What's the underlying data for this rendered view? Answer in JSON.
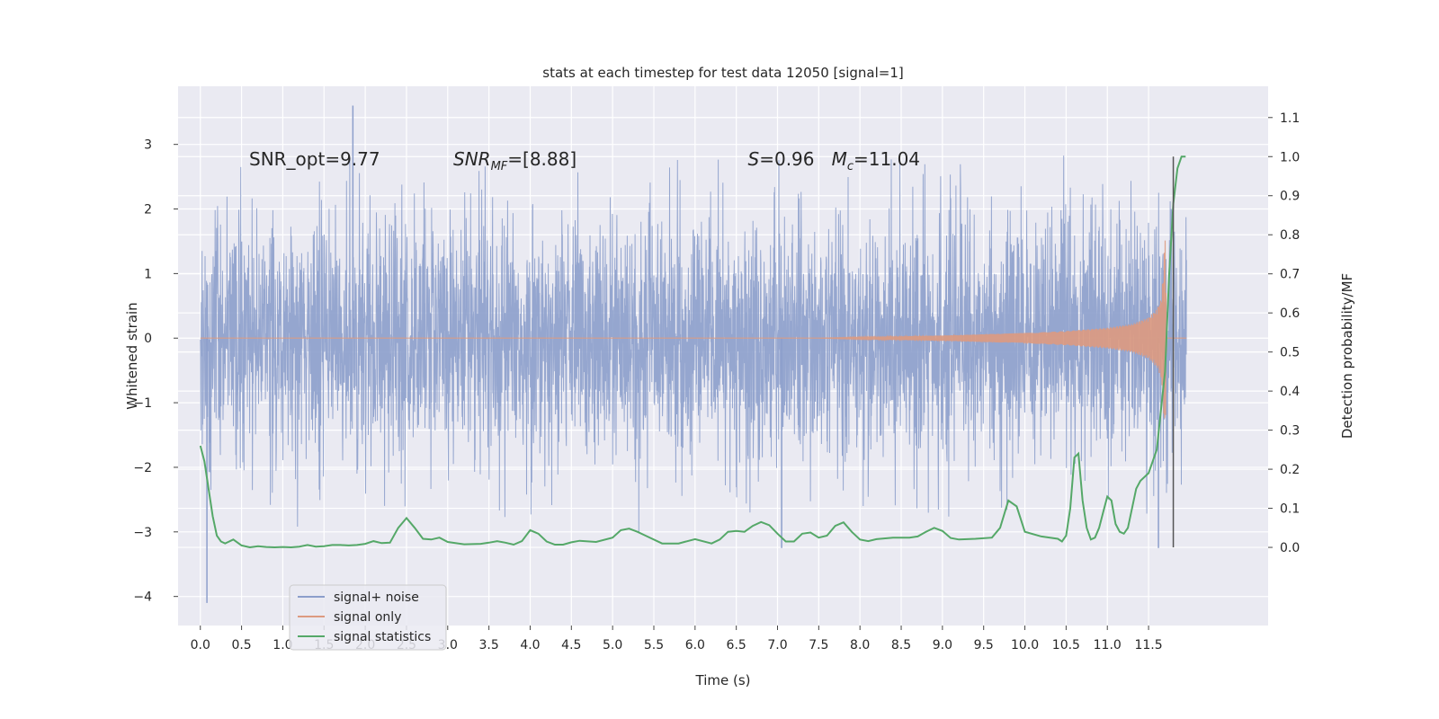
{
  "chart_data": {
    "type": "line",
    "title": "stats at each timestep for test data 12050 [signal=1]",
    "xlabel": "Time (s)",
    "ylabel_left": "Whitened strain",
    "ylabel_right": "Detection probability/MF",
    "xlim": [
      -0.27,
      12.95
    ],
    "ylim_left": [
      -4.45,
      3.9
    ],
    "ylim_right": [
      -0.2,
      1.18
    ],
    "x_ticks": [
      "0.0",
      "0.5",
      "1.0",
      "1.5",
      "2.0",
      "2.5",
      "3.0",
      "3.5",
      "4.0",
      "4.5",
      "5.0",
      "5.5",
      "6.0",
      "6.5",
      "7.0",
      "7.5",
      "8.0",
      "8.5",
      "9.0",
      "9.5",
      "10.0",
      "10.5",
      "11.0",
      "11.5"
    ],
    "y_ticks_left": [
      "3",
      "2",
      "1",
      "0",
      "−1",
      "−2",
      "−3",
      "−4"
    ],
    "y_ticks_right": [
      "1.1",
      "1.0",
      "0.9",
      "0.8",
      "0.7",
      "0.6",
      "0.5",
      "0.4",
      "0.3",
      "0.2",
      "0.1",
      "0.0"
    ],
    "grid": true,
    "legend_position": "lower-left",
    "background_color": "#eaeaf2",
    "series": [
      {
        "name": "signal+ noise",
        "axis": "left",
        "color": "#8c9ecb",
        "x_range": [
          0.0,
          11.96
        ],
        "typical_envelope": [
          -1.6,
          1.55
        ],
        "notable_values": [
          {
            "x": 1.85,
            "y": 3.6
          },
          {
            "x": 0.08,
            "y": -4.1
          },
          {
            "x": 7.05,
            "y": -3.25
          },
          {
            "x": 11.62,
            "y": -3.25
          }
        ]
      },
      {
        "name": "signal only",
        "axis": "left",
        "color": "#dd9a80",
        "envelope": {
          "x": [
            0.0,
            7.5,
            8.0,
            9.0,
            10.0,
            10.5,
            11.0,
            11.3,
            11.5,
            11.6,
            11.65,
            11.68,
            11.7,
            11.72
          ],
          "amp": [
            0.0,
            0.0,
            0.015,
            0.04,
            0.08,
            0.11,
            0.16,
            0.22,
            0.32,
            0.45,
            0.6,
            1.0,
            1.75,
            0.0
          ]
        }
      },
      {
        "name": "signal statistics",
        "axis": "right",
        "color": "#55a868",
        "x": [
          0.0,
          0.05,
          0.1,
          0.15,
          0.2,
          0.25,
          0.3,
          0.4,
          0.5,
          0.6,
          0.7,
          0.8,
          0.9,
          1.0,
          1.1,
          1.2,
          1.3,
          1.4,
          1.5,
          1.6,
          1.7,
          1.8,
          1.9,
          2.0,
          2.1,
          2.2,
          2.3,
          2.4,
          2.5,
          2.6,
          2.7,
          2.8,
          2.9,
          3.0,
          3.2,
          3.4,
          3.5,
          3.6,
          3.7,
          3.8,
          3.9,
          4.0,
          4.1,
          4.2,
          4.3,
          4.4,
          4.5,
          4.6,
          4.8,
          5.0,
          5.1,
          5.2,
          5.3,
          5.4,
          5.6,
          5.8,
          6.0,
          6.2,
          6.3,
          6.4,
          6.5,
          6.6,
          6.7,
          6.8,
          6.9,
          7.0,
          7.1,
          7.2,
          7.3,
          7.4,
          7.5,
          7.6,
          7.7,
          7.8,
          7.9,
          8.0,
          8.1,
          8.2,
          8.4,
          8.6,
          8.7,
          8.8,
          8.9,
          9.0,
          9.1,
          9.2,
          9.4,
          9.6,
          9.7,
          9.8,
          9.9,
          10.0,
          10.2,
          10.4,
          10.45,
          10.5,
          10.55,
          10.6,
          10.65,
          10.7,
          10.75,
          10.8,
          10.85,
          10.9,
          10.95,
          11.0,
          11.05,
          11.1,
          11.15,
          11.2,
          11.25,
          11.3,
          11.35,
          11.4,
          11.5,
          11.6,
          11.7,
          11.75,
          11.8,
          11.85,
          11.9,
          11.95
        ],
        "y": [
          0.26,
          0.22,
          0.15,
          0.08,
          0.03,
          0.015,
          0.01,
          0.02,
          0.005,
          0.0,
          0.003,
          0.001,
          0.0,
          0.001,
          0.0,
          0.002,
          0.006,
          0.002,
          0.003,
          0.006,
          0.006,
          0.005,
          0.006,
          0.009,
          0.016,
          0.011,
          0.012,
          0.05,
          0.075,
          0.05,
          0.022,
          0.02,
          0.025,
          0.014,
          0.008,
          0.009,
          0.012,
          0.016,
          0.012,
          0.007,
          0.016,
          0.044,
          0.035,
          0.015,
          0.007,
          0.007,
          0.013,
          0.017,
          0.014,
          0.025,
          0.044,
          0.048,
          0.04,
          0.03,
          0.01,
          0.01,
          0.021,
          0.01,
          0.02,
          0.04,
          0.042,
          0.04,
          0.055,
          0.065,
          0.057,
          0.035,
          0.015,
          0.015,
          0.035,
          0.038,
          0.025,
          0.03,
          0.055,
          0.064,
          0.04,
          0.02,
          0.016,
          0.021,
          0.025,
          0.025,
          0.028,
          0.04,
          0.05,
          0.042,
          0.024,
          0.02,
          0.022,
          0.025,
          0.05,
          0.12,
          0.105,
          0.04,
          0.028,
          0.022,
          0.015,
          0.03,
          0.1,
          0.23,
          0.24,
          0.12,
          0.05,
          0.02,
          0.025,
          0.05,
          0.09,
          0.13,
          0.12,
          0.06,
          0.04,
          0.035,
          0.05,
          0.1,
          0.15,
          0.17,
          0.19,
          0.25,
          0.45,
          0.7,
          0.88,
          0.97,
          1.0,
          1.0
        ],
        "notable_values": [
          {
            "x": 0.0,
            "y": 0.26
          },
          {
            "x": 11.9,
            "y": 1.0
          }
        ]
      }
    ],
    "vertical_line": {
      "x": 11.8,
      "y_range_right": [
        0.0,
        1.0
      ],
      "color": "#555555"
    },
    "annotations": [
      {
        "text": "SNR_opt=9.77"
      },
      {
        "text_main": "SNR",
        "text_sub": "MF",
        "text_tail": "=[8.88]"
      },
      {
        "text_pre": "S",
        "text_mid": "=0.96   ",
        "text_main": "M",
        "text_sub": "c",
        "text_tail": "=11.04"
      }
    ]
  }
}
